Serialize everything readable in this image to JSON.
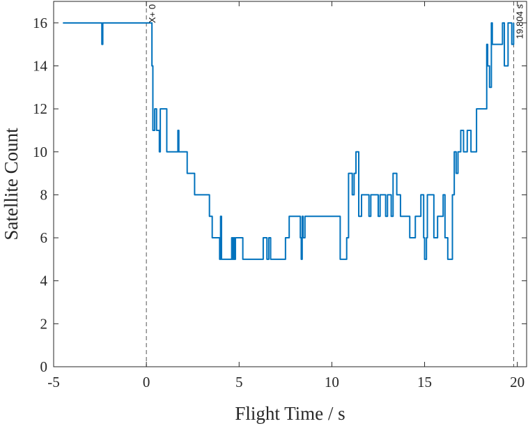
{
  "chart_data": {
    "type": "line",
    "title": "",
    "xlabel": "Flight Time / s",
    "ylabel": "Satellite Count",
    "xlim": [
      -5,
      20.5
    ],
    "ylim": [
      0,
      17
    ],
    "x_ticks": [
      -5,
      0,
      5,
      10,
      15,
      20
    ],
    "y_ticks": [
      0,
      2,
      4,
      6,
      8,
      10,
      12,
      14,
      16
    ],
    "grid": false,
    "line_color": "#0072BD",
    "axis_color": "#262626",
    "series": [
      {
        "name": "",
        "step": true,
        "x": [
          -4.5,
          -2.4,
          -2.35,
          -2.3,
          0.3,
          0.35,
          0.45,
          0.5,
          0.55,
          0.7,
          0.75,
          0.8,
          1.1,
          1.7,
          1.75,
          1.8,
          2.2,
          2.6,
          3.4,
          3.55,
          3.85,
          3.95,
          4.0,
          4.05,
          4.6,
          4.65,
          4.7,
          4.75,
          4.8,
          4.85,
          5.2,
          6.3,
          6.5,
          6.6,
          6.7,
          7.5,
          7.7,
          8.3,
          8.35,
          8.4,
          8.45,
          8.55,
          10.4,
          10.45,
          10.8,
          10.9,
          11.1,
          11.2,
          11.3,
          11.45,
          11.6,
          12.0,
          12.1,
          12.5,
          12.6,
          12.9,
          13.0,
          13.2,
          13.3,
          13.5,
          13.7,
          14.2,
          14.5,
          14.8,
          14.95,
          15.0,
          15.1,
          15.15,
          15.5,
          15.7,
          16.0,
          16.1,
          16.25,
          16.5,
          16.6,
          16.7,
          16.8,
          16.95,
          17.1,
          17.3,
          17.5,
          17.8,
          18.2,
          18.35,
          18.4,
          18.5,
          18.6,
          18.65,
          19.0,
          19.2,
          19.3,
          19.5,
          19.7,
          19.8
        ],
        "y": [
          16,
          15,
          16,
          16,
          14,
          11,
          12,
          12,
          11,
          10,
          12,
          12,
          10,
          11,
          10,
          10,
          9,
          8,
          7,
          6,
          6,
          5,
          7,
          5,
          6,
          5,
          6,
          5,
          6,
          6,
          5,
          6,
          5,
          6,
          5,
          6,
          7,
          6,
          5,
          7,
          6,
          7,
          7,
          5,
          6,
          9,
          8,
          9,
          10,
          7,
          8,
          7,
          8,
          7,
          8,
          7,
          8,
          7,
          9,
          8,
          7,
          6,
          7,
          8,
          6,
          5,
          6,
          8,
          6,
          7,
          8,
          6,
          5,
          8,
          10,
          9,
          10,
          11,
          10,
          11,
          10,
          12,
          12,
          15,
          14,
          13,
          16,
          15,
          15,
          16,
          14,
          16,
          15,
          16
        ]
      }
    ],
    "annotations": [
      {
        "x": 0,
        "label": "X+ 0",
        "style": "dashed-vline"
      },
      {
        "x": 19.804,
        "label": "19.804 s",
        "style": "dashed-vline"
      }
    ]
  }
}
